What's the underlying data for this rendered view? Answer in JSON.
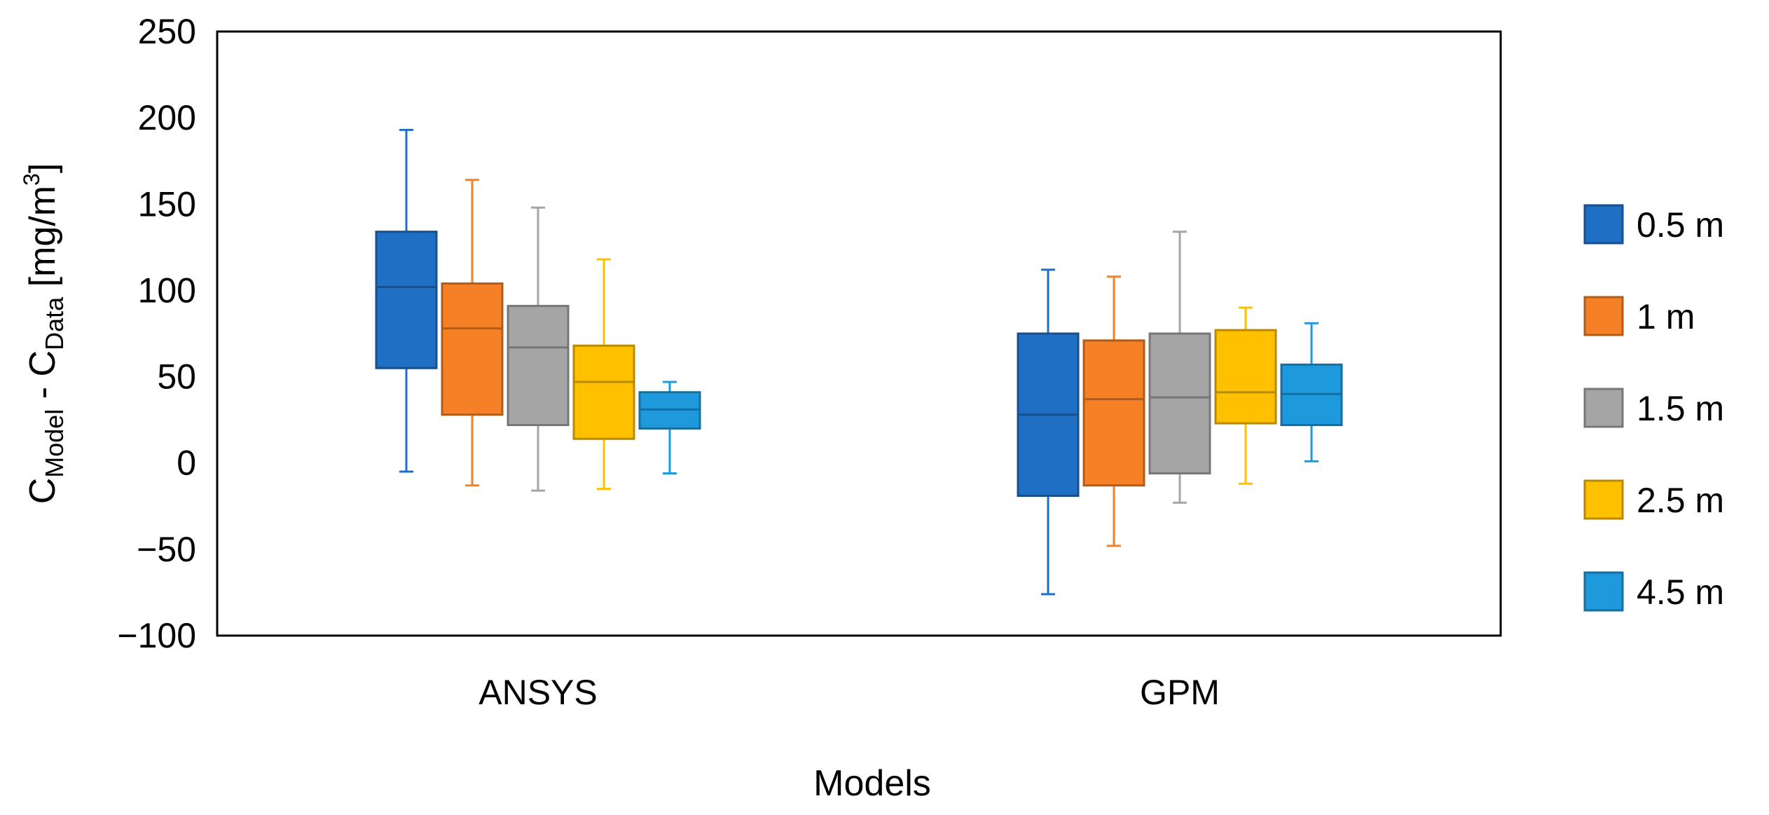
{
  "chart_data": {
    "type": "box",
    "title": "",
    "xlabel": "Models",
    "ylabel": {
      "main_1": "C",
      "sub_1": "Model",
      "main_2": " - C",
      "sub_2": "Data",
      "unit": " [mg/m",
      "sup": "3",
      "unit_end": "]"
    },
    "ylim": [
      -100,
      250
    ],
    "yticks": [
      -100,
      -50,
      0,
      50,
      100,
      150,
      200,
      250
    ],
    "ytick_labels": [
      "−100",
      "−50",
      "0",
      "50",
      "100",
      "150",
      "200",
      "250"
    ],
    "grid": false,
    "legend_position": "right",
    "categories": [
      "ANSYS",
      "GPM"
    ],
    "series": [
      {
        "name": "0.5 m",
        "color": "#1F6FC5",
        "boxes": [
          {
            "min": -5,
            "q1": 55,
            "median": 102,
            "q3": 134,
            "max": 193
          },
          {
            "min": -76,
            "q1": -19,
            "median": 28,
            "q3": 75,
            "max": 112
          }
        ]
      },
      {
        "name": "1 m",
        "color": "#F58025",
        "boxes": [
          {
            "min": -13,
            "q1": 28,
            "median": 78,
            "q3": 104,
            "max": 164
          },
          {
            "min": -48,
            "q1": -13,
            "median": 37,
            "q3": 71,
            "max": 108
          }
        ]
      },
      {
        "name": "1.5 m",
        "color": "#A5A5A5",
        "boxes": [
          {
            "min": -16,
            "q1": 22,
            "median": 67,
            "q3": 91,
            "max": 148
          },
          {
            "min": -23,
            "q1": -6,
            "median": 38,
            "q3": 75,
            "max": 134
          }
        ]
      },
      {
        "name": "2.5 m",
        "color": "#FFC000",
        "boxes": [
          {
            "min": -15,
            "q1": 14,
            "median": 47,
            "q3": 68,
            "max": 118
          },
          {
            "min": -12,
            "q1": 23,
            "median": 41,
            "q3": 77,
            "max": 90
          }
        ]
      },
      {
        "name": "4.5 m",
        "color": "#1E9ADC",
        "boxes": [
          {
            "min": -6,
            "q1": 20,
            "median": 31,
            "q3": 41,
            "max": 47
          },
          {
            "min": 1,
            "q1": 22,
            "median": 40,
            "q3": 57,
            "max": 81
          }
        ]
      }
    ]
  }
}
